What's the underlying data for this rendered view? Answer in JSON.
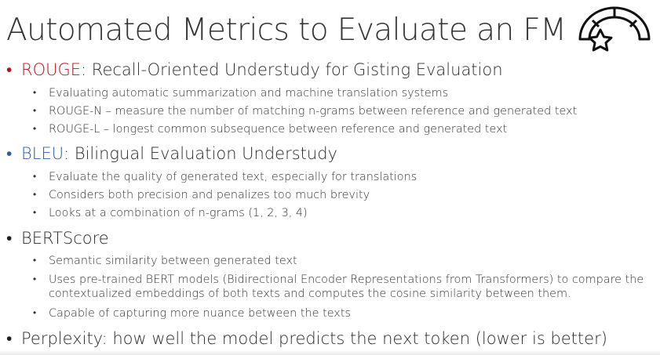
{
  "title": "Automated Metrics to Evaluate an FM",
  "logo_icon": "gauge-star-icon",
  "bullet_glyph": "•",
  "colors": {
    "rouge": "#b5121b",
    "bleu": "#2f5da8",
    "text": "#2b2b2b"
  },
  "sections": {
    "rouge": {
      "term": "ROUGE",
      "rest": ": Recall-Oriented Understudy for Gisting Evaluation",
      "items": [
        "Evaluating automatic summarization and machine translation systems",
        "ROUGE-N – measure the number of matching n-grams between reference and generated text",
        "ROUGE-L – longest common subsequence between reference and generated text"
      ]
    },
    "bleu": {
      "term": "BLEU",
      "rest": ": Bilingual Evaluation Understudy",
      "items": [
        "Evaluate the quality of generated text, especially for translations",
        "Considers both precision and penalizes too much brevity",
        "Looks at a combination of n-grams (1, 2, 3, 4)"
      ]
    },
    "bertscore": {
      "term": "BERTScore",
      "items": [
        "Semantic similarity between generated text",
        "Uses pre-trained BERT models (Bidirectional Encoder Representations from Transformers) to compare the",
        "contextualized embeddings of both texts and computes the cosine similarity between them.",
        "Capable of capturing more nuance between the texts"
      ]
    },
    "perplexity": {
      "term": "Perplexity:",
      "rest": " how well the model predicts the next token (lower is better)"
    }
  }
}
